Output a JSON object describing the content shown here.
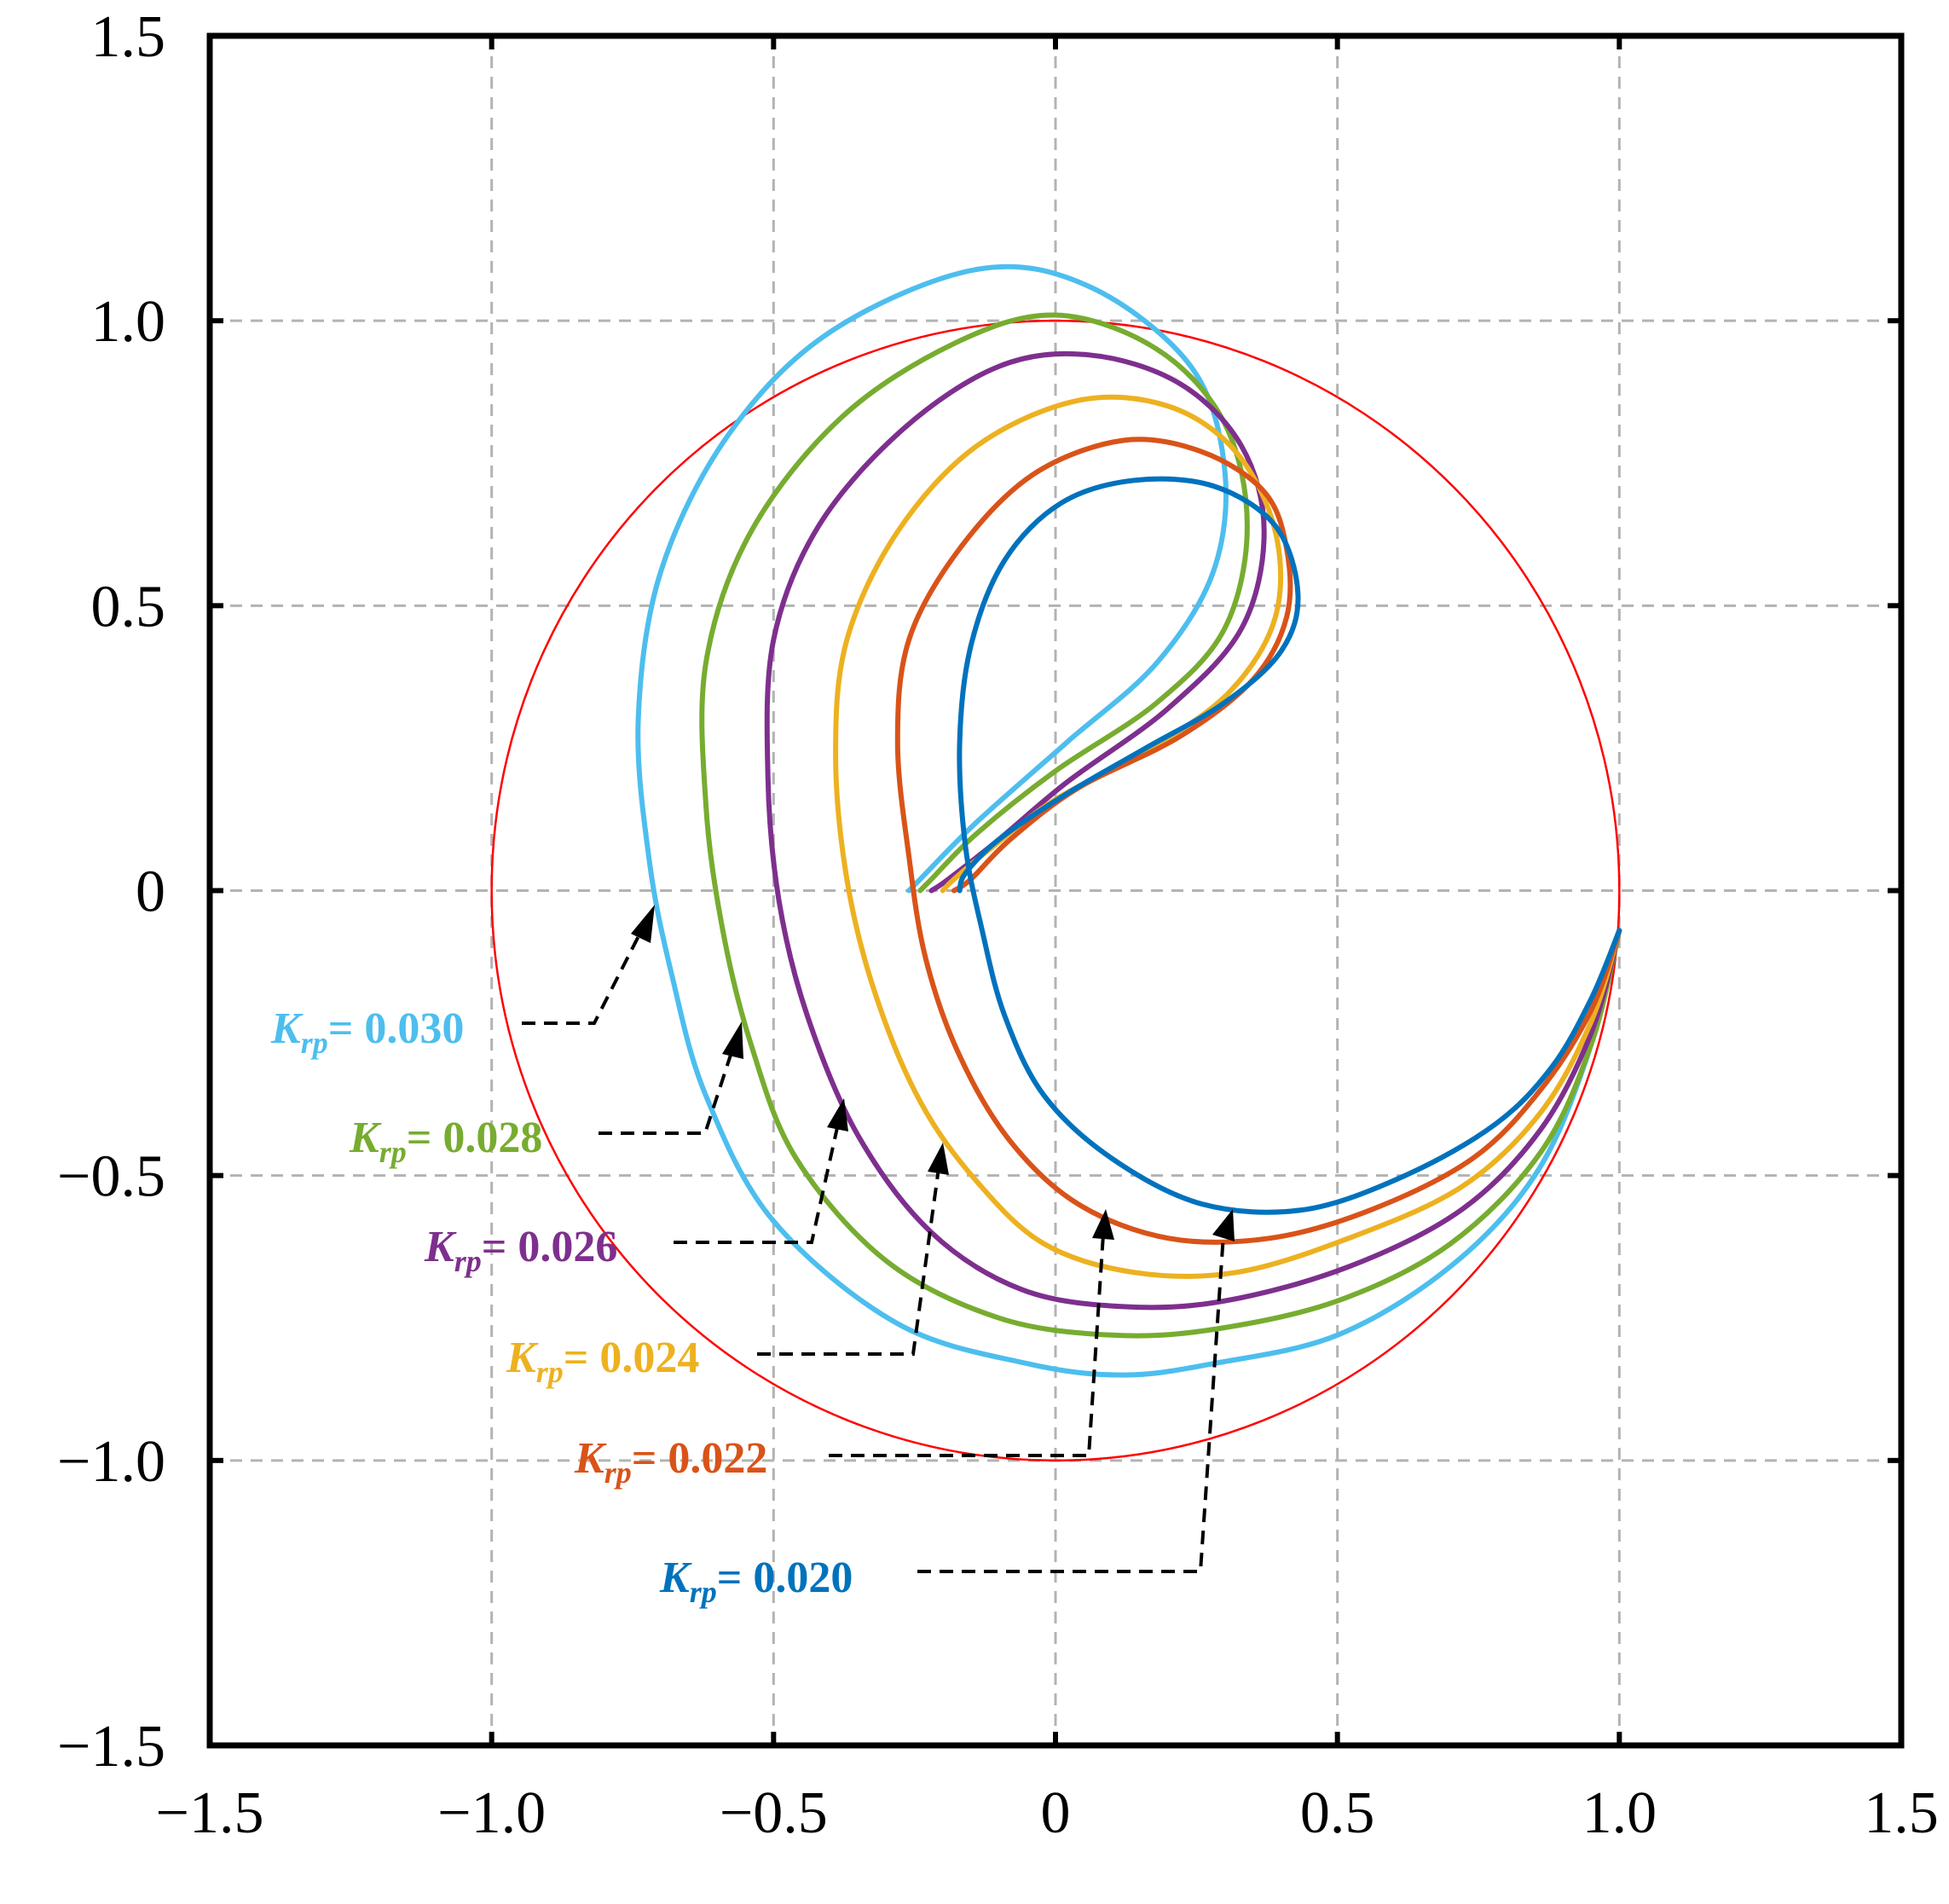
{
  "chart_data": {
    "type": "line",
    "title": "",
    "xlabel": "",
    "ylabel": "",
    "xlim": [
      -1.5,
      1.5
    ],
    "ylim": [
      -1.5,
      1.5
    ],
    "xticks": [
      -1.5,
      -1.0,
      -0.5,
      0,
      0.5,
      1.0,
      1.5
    ],
    "yticks": [
      -1.5,
      -1.0,
      -0.5,
      0,
      0.5,
      1.0,
      1.5
    ],
    "xtick_labels": [
      "−1.5",
      "−1.0",
      "−0.5",
      "0",
      "0.5",
      "1.0",
      "1.5"
    ],
    "ytick_labels": [
      "−1.5",
      "−1.0",
      "−0.5",
      "0",
      "0.5",
      "1.0",
      "1.5"
    ],
    "grid": true,
    "reference_circle": {
      "center": [
        0,
        0
      ],
      "radius": 1.0,
      "color": "#ff0000"
    },
    "legend_symbol": "K",
    "legend_subscript": "rp",
    "series": [
      {
        "name": "0.030",
        "color": "#4dbeee",
        "arrow_target": [
          -0.7,
          -0.03
        ],
        "points": [
          [
            1.0,
            -0.07
          ],
          [
            0.94,
            -0.3
          ],
          [
            0.85,
            -0.5
          ],
          [
            0.7,
            -0.66
          ],
          [
            0.5,
            -0.78
          ],
          [
            0.28,
            -0.83
          ],
          [
            0.12,
            -0.85
          ],
          [
            -0.05,
            -0.83
          ],
          [
            -0.28,
            -0.76
          ],
          [
            -0.5,
            -0.58
          ],
          [
            -0.62,
            -0.36
          ],
          [
            -0.68,
            -0.15
          ],
          [
            -0.72,
            0.05
          ],
          [
            -0.74,
            0.3
          ],
          [
            -0.7,
            0.56
          ],
          [
            -0.58,
            0.8
          ],
          [
            -0.4,
            0.98
          ],
          [
            -0.14,
            1.09
          ],
          [
            0.06,
            1.06
          ],
          [
            0.24,
            0.92
          ],
          [
            0.3,
            0.74
          ],
          [
            0.28,
            0.56
          ],
          [
            0.18,
            0.4
          ],
          [
            0.02,
            0.26
          ],
          [
            -0.14,
            0.12
          ],
          [
            -0.24,
            0.02
          ],
          [
            -0.26,
            0.0
          ]
        ]
      },
      {
        "name": "0.028",
        "color": "#77ac30",
        "arrow_target": [
          -0.56,
          -0.23
        ],
        "points": [
          [
            1.0,
            -0.07
          ],
          [
            0.95,
            -0.27
          ],
          [
            0.86,
            -0.46
          ],
          [
            0.7,
            -0.62
          ],
          [
            0.5,
            -0.72
          ],
          [
            0.28,
            -0.77
          ],
          [
            0.1,
            -0.78
          ],
          [
            -0.1,
            -0.75
          ],
          [
            -0.3,
            -0.65
          ],
          [
            -0.46,
            -0.47
          ],
          [
            -0.54,
            -0.27
          ],
          [
            -0.59,
            -0.07
          ],
          [
            -0.62,
            0.15
          ],
          [
            -0.62,
            0.4
          ],
          [
            -0.54,
            0.63
          ],
          [
            -0.38,
            0.83
          ],
          [
            -0.18,
            0.96
          ],
          [
            0.0,
            1.01
          ],
          [
            0.18,
            0.95
          ],
          [
            0.3,
            0.82
          ],
          [
            0.34,
            0.64
          ],
          [
            0.3,
            0.46
          ],
          [
            0.18,
            0.33
          ],
          [
            0.0,
            0.21
          ],
          [
            -0.14,
            0.1
          ],
          [
            -0.22,
            0.02
          ],
          [
            -0.24,
            0.0
          ]
        ]
      },
      {
        "name": "0.026",
        "color": "#7e2f8e",
        "arrow_target": [
          -0.37,
          -0.37
        ],
        "points": [
          [
            1.0,
            -0.07
          ],
          [
            0.95,
            -0.25
          ],
          [
            0.86,
            -0.42
          ],
          [
            0.72,
            -0.56
          ],
          [
            0.52,
            -0.66
          ],
          [
            0.3,
            -0.72
          ],
          [
            0.12,
            -0.73
          ],
          [
            -0.06,
            -0.7
          ],
          [
            -0.22,
            -0.6
          ],
          [
            -0.35,
            -0.43
          ],
          [
            -0.44,
            -0.22
          ],
          [
            -0.49,
            -0.02
          ],
          [
            -0.51,
            0.2
          ],
          [
            -0.5,
            0.44
          ],
          [
            -0.42,
            0.64
          ],
          [
            -0.27,
            0.81
          ],
          [
            -0.1,
            0.92
          ],
          [
            0.06,
            0.94
          ],
          [
            0.22,
            0.89
          ],
          [
            0.33,
            0.78
          ],
          [
            0.37,
            0.63
          ],
          [
            0.33,
            0.46
          ],
          [
            0.2,
            0.32
          ],
          [
            0.02,
            0.19
          ],
          [
            -0.1,
            0.09
          ],
          [
            -0.19,
            0.02
          ],
          [
            -0.22,
            0.0
          ]
        ]
      },
      {
        "name": "0.024",
        "color": "#edb120",
        "arrow_target": [
          -0.19,
          -0.45
        ],
        "points": [
          [
            1.0,
            -0.07
          ],
          [
            0.95,
            -0.23
          ],
          [
            0.86,
            -0.39
          ],
          [
            0.72,
            -0.52
          ],
          [
            0.52,
            -0.61
          ],
          [
            0.32,
            -0.67
          ],
          [
            0.14,
            -0.67
          ],
          [
            -0.02,
            -0.62
          ],
          [
            -0.14,
            -0.51
          ],
          [
            -0.24,
            -0.37
          ],
          [
            -0.32,
            -0.18
          ],
          [
            -0.37,
            0.02
          ],
          [
            -0.39,
            0.24
          ],
          [
            -0.37,
            0.44
          ],
          [
            -0.28,
            0.63
          ],
          [
            -0.14,
            0.78
          ],
          [
            0.04,
            0.86
          ],
          [
            0.2,
            0.85
          ],
          [
            0.32,
            0.77
          ],
          [
            0.39,
            0.63
          ],
          [
            0.39,
            0.48
          ],
          [
            0.31,
            0.35
          ],
          [
            0.17,
            0.25
          ],
          [
            0.0,
            0.16
          ],
          [
            -0.12,
            0.07
          ],
          [
            -0.18,
            0.02
          ],
          [
            -0.2,
            0.0
          ]
        ]
      },
      {
        "name": "0.022",
        "color": "#d95319",
        "arrow_target": [
          0.1,
          -0.55
        ],
        "points": [
          [
            1.0,
            -0.07
          ],
          [
            0.95,
            -0.21
          ],
          [
            0.86,
            -0.35
          ],
          [
            0.74,
            -0.47
          ],
          [
            0.56,
            -0.56
          ],
          [
            0.38,
            -0.61
          ],
          [
            0.2,
            -0.61
          ],
          [
            0.04,
            -0.55
          ],
          [
            -0.08,
            -0.44
          ],
          [
            -0.17,
            -0.29
          ],
          [
            -0.23,
            -0.12
          ],
          [
            -0.26,
            0.06
          ],
          [
            -0.28,
            0.26
          ],
          [
            -0.26,
            0.44
          ],
          [
            -0.17,
            0.6
          ],
          [
            -0.04,
            0.73
          ],
          [
            0.12,
            0.79
          ],
          [
            0.26,
            0.77
          ],
          [
            0.37,
            0.7
          ],
          [
            0.41,
            0.6
          ],
          [
            0.41,
            0.48
          ],
          [
            0.35,
            0.37
          ],
          [
            0.22,
            0.27
          ],
          [
            0.04,
            0.18
          ],
          [
            -0.08,
            0.09
          ],
          [
            -0.15,
            0.02
          ],
          [
            -0.18,
            0.0
          ]
        ]
      },
      {
        "name": "0.020",
        "color": "#0072bd",
        "arrow_target": [
          0.32,
          -0.55
        ],
        "points": [
          [
            1.0,
            -0.07
          ],
          [
            0.95,
            -0.19
          ],
          [
            0.88,
            -0.31
          ],
          [
            0.78,
            -0.41
          ],
          [
            0.62,
            -0.5
          ],
          [
            0.44,
            -0.56
          ],
          [
            0.26,
            -0.55
          ],
          [
            0.1,
            -0.47
          ],
          [
            -0.02,
            -0.36
          ],
          [
            -0.09,
            -0.22
          ],
          [
            -0.13,
            -0.07
          ],
          [
            -0.16,
            0.08
          ],
          [
            -0.17,
            0.26
          ],
          [
            -0.15,
            0.43
          ],
          [
            -0.09,
            0.58
          ],
          [
            0.01,
            0.68
          ],
          [
            0.14,
            0.72
          ],
          [
            0.28,
            0.71
          ],
          [
            0.39,
            0.64
          ],
          [
            0.43,
            0.52
          ],
          [
            0.4,
            0.42
          ],
          [
            0.3,
            0.33
          ],
          [
            0.16,
            0.25
          ],
          [
            0.02,
            0.17
          ],
          [
            -0.1,
            0.09
          ],
          [
            -0.16,
            0.03
          ],
          [
            -0.17,
            0.0
          ]
        ]
      }
    ],
    "legend_placement": "left-bottom, with dashed leader arrows"
  },
  "legend": [
    {
      "k": "K",
      "sub": "rp",
      "eq": "= ",
      "value": "0.030"
    },
    {
      "k": "K",
      "sub": "rp",
      "eq": "= ",
      "value": "0.028"
    },
    {
      "k": "K",
      "sub": "rp",
      "eq": "= ",
      "value": "0.026"
    },
    {
      "k": "K",
      "sub": "rp",
      "eq": "= ",
      "value": "0.024"
    },
    {
      "k": "K",
      "sub": "rp",
      "eq": "= ",
      "value": "0.022"
    },
    {
      "k": "K",
      "sub": "rp",
      "eq": "= ",
      "value": "0.020"
    }
  ]
}
